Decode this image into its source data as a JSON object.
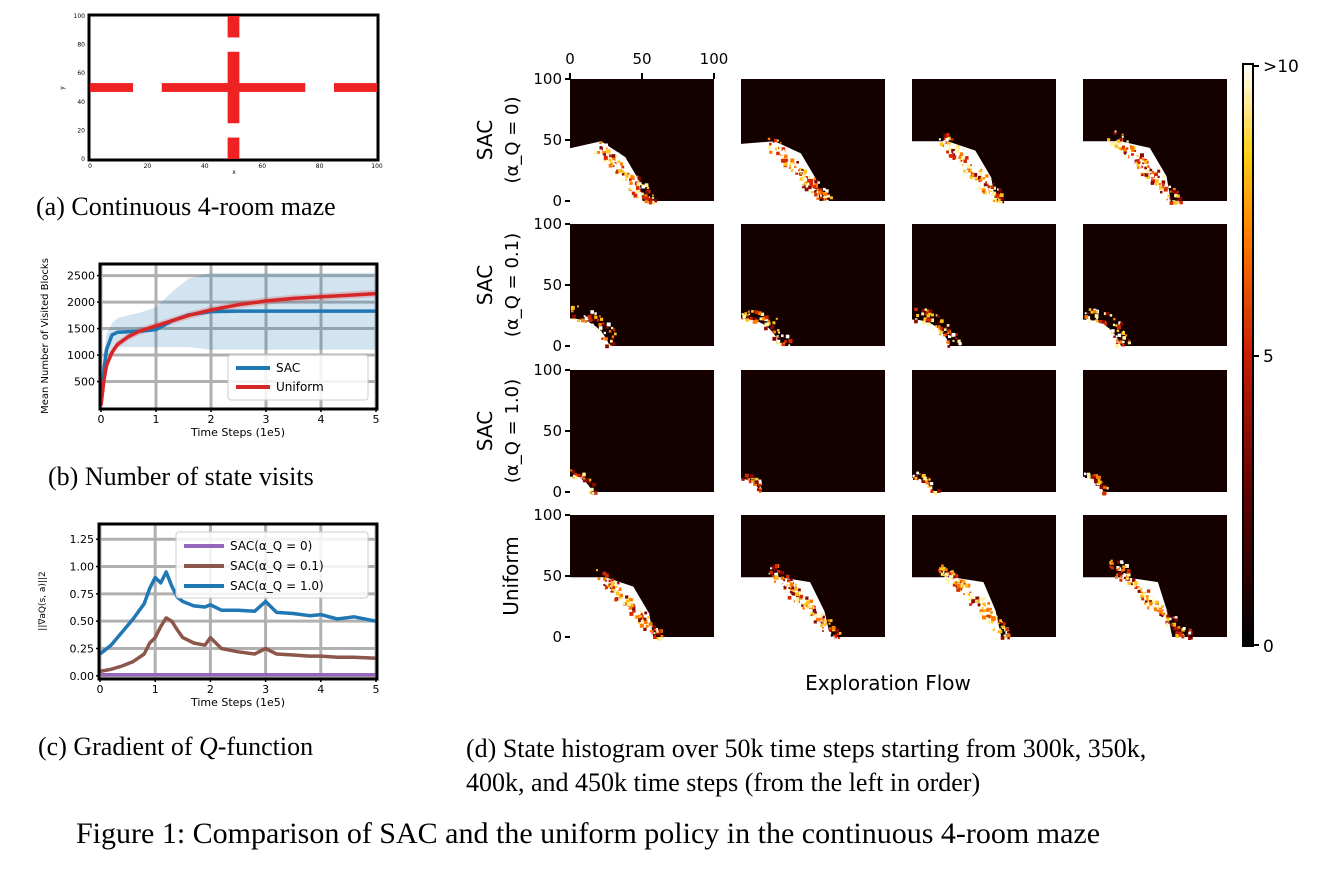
{
  "figure_caption": "Figure 1: Comparison of SAC and the uniform policy in the continuous 4-room maze",
  "captions": {
    "a_tag": "(a)",
    "a_text": "Continuous 4-room maze",
    "b_tag": "(b)",
    "b_text": "Number of state visits",
    "c_tag": "(c)",
    "c_text_pre": "Gradient of ",
    "c_text_q": "Q",
    "c_text_post": "-function",
    "d_tag": "(d)",
    "d_line1": "State histogram over 50k time steps starting from 300k, 350k,",
    "d_line2": "400k, and 450k time steps (from the left in order)"
  },
  "colors": {
    "maze_wall": "#ee2222",
    "sac_blue": "#1f77b4",
    "uniform_red": "#d62728",
    "sac0_purple": "#9467bd",
    "sac01_brown": "#8c564b",
    "heat_bg": "#150000",
    "heat_hot": "#ffffff"
  },
  "chart_data": [
    {
      "id": "a",
      "type": "scatter",
      "title": "",
      "xlabel": "x",
      "ylabel": "y",
      "xlim": [
        0,
        100
      ],
      "ylim": [
        0,
        100
      ],
      "xticks": [
        "0",
        "20",
        "40",
        "60",
        "80",
        "100"
      ],
      "yticks": [
        "0",
        "20",
        "40",
        "60",
        "80",
        "100"
      ],
      "walls": [
        {
          "x0": 0,
          "x1": 15,
          "y0": 49,
          "y1": 51
        },
        {
          "x0": 25,
          "x1": 75,
          "y0": 49,
          "y1": 51
        },
        {
          "x0": 85,
          "x1": 100,
          "y0": 49,
          "y1": 51
        },
        {
          "x0": 49,
          "x1": 51,
          "y0": 0,
          "y1": 15
        },
        {
          "x0": 49,
          "x1": 51,
          "y0": 25,
          "y1": 75
        },
        {
          "x0": 49,
          "x1": 51,
          "y0": 85,
          "y1": 100
        }
      ]
    },
    {
      "id": "b",
      "type": "line",
      "xlabel": "Time Steps (1e5)",
      "ylabel": "Mean Number of Visited Blocks",
      "xlim": [
        0,
        5
      ],
      "ylim": [
        0,
        2700
      ],
      "xticks": [
        "0",
        "1",
        "2",
        "3",
        "4",
        "5"
      ],
      "yticks": [
        "500",
        "1000",
        "1500",
        "2000",
        "2500"
      ],
      "ytick_values": [
        500,
        1000,
        1500,
        2000,
        2500
      ],
      "grid": true,
      "legend": "lower-right",
      "x": [
        0,
        0.05,
        0.1,
        0.2,
        0.3,
        0.5,
        0.7,
        1.0,
        1.3,
        1.6,
        2.0,
        2.5,
        3.0,
        3.5,
        4.0,
        4.5,
        5.0
      ],
      "series": [
        {
          "name": "SAC",
          "values": [
            50,
            700,
            1100,
            1380,
            1430,
            1440,
            1450,
            1480,
            1650,
            1760,
            1820,
            1830,
            1830,
            1830,
            1830,
            1830,
            1830
          ],
          "lower": [
            0,
            300,
            700,
            1100,
            1150,
            1150,
            1150,
            1150,
            1150,
            1150,
            1100,
            1100,
            1100,
            1100,
            1100,
            1100,
            1100
          ],
          "upper": [
            200,
            1000,
            1400,
            1600,
            1700,
            1750,
            1800,
            1900,
            2200,
            2450,
            2550,
            2550,
            2550,
            2550,
            2550,
            2550,
            2550
          ]
        },
        {
          "name": "Uniform",
          "values": [
            50,
            500,
            800,
            1050,
            1200,
            1350,
            1450,
            1550,
            1650,
            1750,
            1850,
            1950,
            2020,
            2070,
            2100,
            2130,
            2160
          ],
          "lower": [
            0,
            450,
            730,
            980,
            1130,
            1280,
            1380,
            1480,
            1580,
            1680,
            1780,
            1880,
            1950,
            2000,
            2030,
            2060,
            2090
          ],
          "upper": [
            100,
            560,
            870,
            1120,
            1270,
            1420,
            1520,
            1620,
            1720,
            1820,
            1920,
            2020,
            2090,
            2140,
            2170,
            2200,
            2230
          ]
        }
      ]
    },
    {
      "id": "c",
      "type": "line",
      "xlabel": "Time Steps (1e5)",
      "ylabel": "||∇aQ(s, a)||2",
      "xlim": [
        0,
        5
      ],
      "ylim": [
        -0.02,
        1.38
      ],
      "xticks": [
        "0",
        "1",
        "2",
        "3",
        "4",
        "5"
      ],
      "yticks": [
        "0.00",
        "0.25",
        "0.50",
        "0.75",
        "1.00",
        "1.25"
      ],
      "ytick_values": [
        0,
        0.25,
        0.5,
        0.75,
        1.0,
        1.25
      ],
      "grid": true,
      "legend": "upper-right",
      "x": [
        0,
        0.2,
        0.4,
        0.6,
        0.8,
        0.9,
        1.0,
        1.1,
        1.2,
        1.3,
        1.4,
        1.5,
        1.7,
        1.9,
        2.0,
        2.2,
        2.5,
        2.8,
        3.0,
        3.2,
        3.5,
        3.8,
        4.0,
        4.3,
        4.6,
        5.0
      ],
      "series": [
        {
          "name": "SAC(α_Q = 0)",
          "values": [
            0.01,
            0.01,
            0.01,
            0.01,
            0.01,
            0.01,
            0.01,
            0.01,
            0.01,
            0.01,
            0.01,
            0.01,
            0.01,
            0.01,
            0.01,
            0.01,
            0.01,
            0.01,
            0.01,
            0.01,
            0.01,
            0.01,
            0.01,
            0.01,
            0.01,
            0.01
          ]
        },
        {
          "name": "SAC(α_Q = 0.1)",
          "values": [
            0.04,
            0.06,
            0.09,
            0.13,
            0.2,
            0.3,
            0.35,
            0.45,
            0.53,
            0.5,
            0.42,
            0.35,
            0.3,
            0.28,
            0.35,
            0.25,
            0.22,
            0.2,
            0.25,
            0.2,
            0.19,
            0.18,
            0.18,
            0.17,
            0.17,
            0.16
          ]
        },
        {
          "name": "SAC(α_Q = 1.0)",
          "values": [
            0.2,
            0.28,
            0.4,
            0.52,
            0.66,
            0.8,
            0.9,
            0.85,
            0.95,
            0.82,
            0.72,
            0.68,
            0.64,
            0.63,
            0.65,
            0.6,
            0.6,
            0.59,
            0.68,
            0.58,
            0.57,
            0.55,
            0.56,
            0.52,
            0.54,
            0.5
          ]
        }
      ]
    },
    {
      "id": "d",
      "type": "heatmap",
      "xlabel": "Exploration Flow",
      "xlim": [
        0,
        100
      ],
      "ylim": [
        0,
        100
      ],
      "xticks": [
        "0",
        "50",
        "100"
      ],
      "yticks": [
        "0",
        "50",
        "100"
      ],
      "colorbar": {
        "min_label": "0",
        "mid_label": "5",
        "max_label": ">10",
        "range": [
          0,
          10
        ]
      },
      "rows": [
        {
          "label": "SAC",
          "sublabel": "(α_Q = 0)",
          "extents": [
            48,
            52,
            55,
            58
          ]
        },
        {
          "label": "SAC",
          "sublabel": "(α_Q = 0.1)",
          "extents": [
            25,
            25,
            24,
            24
          ]
        },
        {
          "label": "SAC",
          "sublabel": "(α_Q = 1.0)",
          "extents": [
            14,
            12,
            13,
            13
          ]
        },
        {
          "label": "Uniform",
          "sublabel": "",
          "extents": [
            55,
            60,
            62,
            65
          ]
        }
      ]
    }
  ]
}
